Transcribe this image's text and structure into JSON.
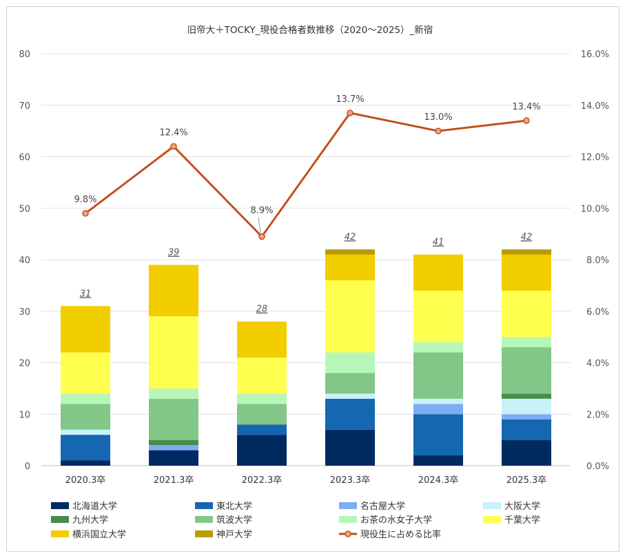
{
  "chart_data": {
    "type": "bar",
    "title": "旧帝大＋TOCKY_現役合格者数推移（2020～2025）_新宿",
    "categories": [
      "2020.3卒",
      "2021.3卒",
      "2022.3卒",
      "2023.3卒",
      "2024.3卒",
      "2025.3卒"
    ],
    "stacked": true,
    "ylim": [
      0,
      80
    ],
    "y_ticks": [
      "0",
      "10",
      "20",
      "30",
      "40",
      "50",
      "60",
      "70",
      "80"
    ],
    "y2lim": [
      0,
      16
    ],
    "y2_ticks": [
      "0.0%",
      "2.0%",
      "4.0%",
      "6.0%",
      "8.0%",
      "10.0%",
      "12.0%",
      "14.0%",
      "16.0%"
    ],
    "grid": true,
    "legend_position": "bottom",
    "series": [
      {
        "name": "北海道大学",
        "color": "#002A60",
        "values": [
          1,
          3,
          6,
          7,
          2,
          5
        ]
      },
      {
        "name": "東北大学",
        "color": "#1467B0",
        "values": [
          5,
          0,
          2,
          6,
          8,
          4
        ]
      },
      {
        "name": "名古屋大学",
        "color": "#7AAEF5",
        "values": [
          0,
          1,
          0,
          0,
          2,
          1
        ]
      },
      {
        "name": "大阪大学",
        "color": "#C8F1FA",
        "values": [
          1,
          0,
          0,
          1,
          1,
          3
        ]
      },
      {
        "name": "九州大学",
        "color": "#4A8A4C",
        "values": [
          0,
          1,
          0,
          0,
          0,
          1
        ]
      },
      {
        "name": "筑波大学",
        "color": "#82C787",
        "values": [
          5,
          8,
          4,
          4,
          9,
          9
        ]
      },
      {
        "name": "お茶の水女子大学",
        "color": "#B6F7B8",
        "values": [
          2,
          2,
          2,
          4,
          2,
          2
        ]
      },
      {
        "name": "千葉大学",
        "color": "#FFFF50",
        "values": [
          8,
          14,
          7,
          14,
          10,
          9
        ]
      },
      {
        "name": "横浜国立大学",
        "color": "#F2CD00",
        "values": [
          9,
          10,
          7,
          5,
          7,
          7
        ]
      },
      {
        "name": "神戸大学",
        "color": "#B89D00",
        "values": [
          0,
          0,
          0,
          1,
          0,
          1
        ]
      }
    ],
    "totals": [
      31,
      39,
      28,
      42,
      41,
      42
    ],
    "total_labels": [
      "31",
      "39",
      "28",
      "42",
      "41",
      "42"
    ],
    "line_series": {
      "name": "現役生に占める比率",
      "color": "#C0501E",
      "marker_fill": "#F4A582",
      "values": [
        9.8,
        12.4,
        8.9,
        13.7,
        13.0,
        13.4
      ],
      "labels": [
        "9.8%",
        "12.4%",
        "8.9%",
        "13.7%",
        "13.0%",
        "13.4%"
      ]
    }
  }
}
